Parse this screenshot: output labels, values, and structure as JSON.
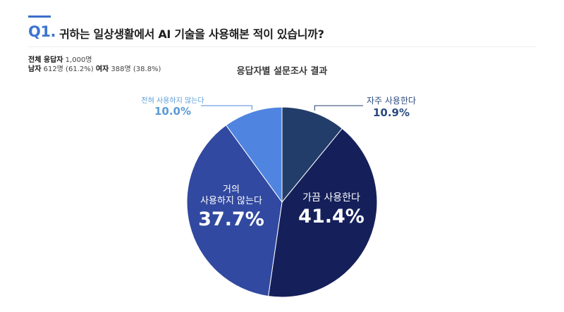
{
  "header": {
    "question_number": "Q1.",
    "question_title": "귀하는 일상생활에서 AI 기술을 사용해본 적이 있습니까?"
  },
  "stats": {
    "total_label": "전체 응답자",
    "total_value": "1,000명",
    "male_label": "남자",
    "male_value": "612명 (61.2%)",
    "female_label": "여자",
    "female_value": "388명 (38.8%)"
  },
  "chart_data": {
    "type": "pie",
    "title": "응답자별 설문조사 결과",
    "labels": [
      "자주 사용한다",
      "가끔 사용한다",
      "거의 사용하지 않는다",
      "전혀 사용하지 않는다"
    ],
    "label_lines": [
      [
        "자주 사용한다"
      ],
      [
        "가끔 사용한다"
      ],
      [
        "거의",
        "사용하지 않는다"
      ],
      [
        "전혀 사용하지 않는다"
      ]
    ],
    "values": [
      10.9,
      41.4,
      37.7,
      10.0
    ],
    "value_labels": [
      "10.9%",
      "41.4%",
      "37.7%",
      "10.0%"
    ],
    "colors": [
      "#233d6b",
      "#15205a",
      "#3149a0",
      "#4f85e1"
    ],
    "start": "top",
    "direction": "clockwise"
  }
}
